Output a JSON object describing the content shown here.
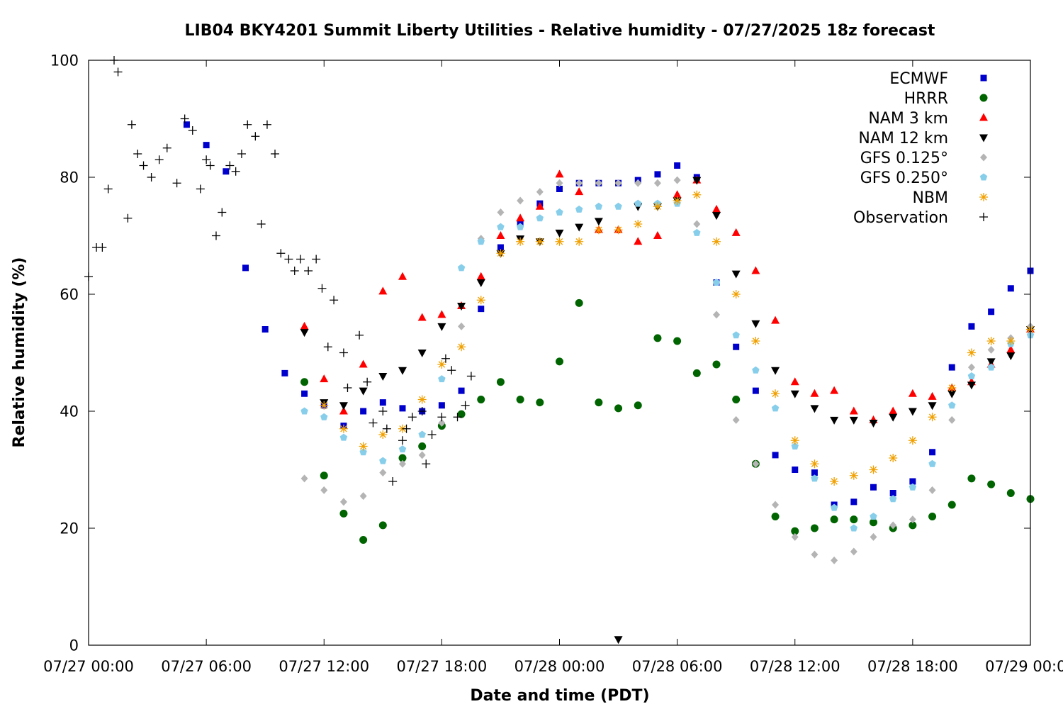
{
  "chart_data": {
    "type": "scatter",
    "title": "LIB04 BKY4201 Summit Liberty Utilities - Relative humidity - 07/27/2025 18z forecast",
    "xlabel": "Date and time (PDT)",
    "ylabel": "Relative humidity (%)",
    "x_unit": "hours since 07/27 00:00",
    "xlim": [
      0,
      48
    ],
    "ylim": [
      0,
      100
    ],
    "x_ticks": [
      {
        "value": 0,
        "label": "07/27 00:00"
      },
      {
        "value": 6,
        "label": "07/27 06:00"
      },
      {
        "value": 12,
        "label": "07/27 12:00"
      },
      {
        "value": 18,
        "label": "07/27 18:00"
      },
      {
        "value": 24,
        "label": "07/28 00:00"
      },
      {
        "value": 30,
        "label": "07/28 06:00"
      },
      {
        "value": 36,
        "label": "07/28 12:00"
      },
      {
        "value": 42,
        "label": "07/28 18:00"
      },
      {
        "value": 48,
        "label": "07/29 00:00"
      }
    ],
    "y_ticks": [
      {
        "value": 0,
        "label": "0"
      },
      {
        "value": 20,
        "label": "20"
      },
      {
        "value": 40,
        "label": "40"
      },
      {
        "value": 60,
        "label": "60"
      },
      {
        "value": 80,
        "label": "80"
      },
      {
        "value": 100,
        "label": "100"
      }
    ],
    "legend_position": "top-right",
    "series": [
      {
        "name": "ECMWF",
        "marker": "square",
        "color": "#0000cc",
        "x": [
          5,
          6,
          7,
          8,
          9,
          10,
          11,
          12,
          13,
          14,
          15,
          16,
          17,
          18,
          19,
          20,
          21,
          22,
          23,
          24,
          25,
          26,
          27,
          28,
          29,
          30,
          31,
          32,
          33,
          34,
          35,
          36,
          37,
          38,
          39,
          40,
          41,
          42,
          43,
          44,
          45,
          46,
          47,
          48
        ],
        "y": [
          89,
          85.5,
          81,
          64.5,
          54,
          46.5,
          43,
          41,
          37.5,
          40,
          41.5,
          40.5,
          40,
          41,
          43.5,
          57.5,
          68,
          72,
          75.5,
          78,
          79,
          79,
          79,
          79.5,
          80.5,
          82,
          80,
          62,
          51,
          43.5,
          32.5,
          30,
          29.5,
          24,
          24.5,
          27,
          26,
          28,
          33,
          47.5,
          54.5,
          57,
          61,
          64
        ]
      },
      {
        "name": "HRRR",
        "marker": "circle",
        "color": "#006400",
        "x": [
          11,
          12,
          13,
          14,
          15,
          16,
          17,
          18,
          19,
          20,
          21,
          22,
          23,
          24,
          25,
          26,
          27,
          28,
          29,
          30,
          31,
          32,
          33,
          34,
          35,
          36,
          37,
          38,
          39,
          40,
          41,
          42,
          43,
          44,
          45,
          46,
          47,
          48
        ],
        "y": [
          45,
          29,
          22.5,
          18,
          20.5,
          32,
          34,
          37.5,
          39.5,
          42,
          45,
          42,
          41.5,
          48.5,
          58.5,
          41.5,
          40.5,
          41,
          52.5,
          52,
          46.5,
          48,
          42,
          31,
          22,
          19.5,
          20,
          21.5,
          21.5,
          21,
          20,
          20.5,
          22,
          24,
          28.5,
          27.5,
          26,
          25
        ]
      },
      {
        "name": "NAM 3 km",
        "marker": "triangle-up",
        "color": "#ff0000",
        "x": [
          11,
          12,
          13,
          14,
          15,
          16,
          17,
          18,
          19,
          20,
          21,
          22,
          23,
          24,
          25,
          26,
          27,
          28,
          29,
          30,
          31,
          32,
          33,
          34,
          35,
          36,
          37,
          38,
          39,
          40,
          41,
          42,
          43,
          44,
          45,
          46,
          47,
          48
        ],
        "y": [
          54.5,
          45.5,
          40,
          48,
          60.5,
          63,
          56,
          56.5,
          58,
          63,
          70,
          73,
          75,
          80.5,
          77.5,
          71,
          71,
          69,
          70,
          77,
          79.5,
          74.5,
          70.5,
          64,
          55.5,
          45,
          43,
          43.5,
          40,
          38.5,
          40,
          43,
          42.5,
          44,
          45,
          48,
          50.5,
          54
        ]
      },
      {
        "name": "NAM 12 km",
        "marker": "triangle-down",
        "color": "#000000",
        "x": [
          11,
          12,
          13,
          14,
          15,
          16,
          17,
          18,
          19,
          20,
          21,
          22,
          23,
          24,
          25,
          26,
          27,
          28,
          29,
          30,
          31,
          32,
          33,
          34,
          35,
          36,
          37,
          38,
          39,
          40,
          41,
          42,
          43,
          44,
          45,
          46,
          47,
          48
        ],
        "y": [
          53.5,
          41.5,
          41,
          43.5,
          46,
          47,
          50,
          54.5,
          58,
          62,
          67,
          69.5,
          69,
          70.5,
          71.5,
          72.5,
          1,
          75,
          75,
          76,
          79.5,
          73.5,
          63.5,
          55,
          47,
          43,
          40.5,
          38.5,
          38.5,
          38,
          39,
          40,
          41,
          43,
          44.5,
          48.5,
          49.5,
          54
        ]
      },
      {
        "name": "GFS 0.125°",
        "marker": "diamond",
        "color": "#b4b4b4",
        "x": [
          11,
          12,
          13,
          14,
          15,
          16,
          17,
          18,
          19,
          20,
          21,
          22,
          23,
          24,
          25,
          26,
          27,
          28,
          29,
          30,
          31,
          32,
          33,
          34,
          35,
          36,
          37,
          38,
          39,
          40,
          41,
          42,
          43,
          44,
          45,
          46,
          47,
          48
        ],
        "y": [
          28.5,
          26.5,
          24.5,
          25.5,
          29.5,
          31,
          32.5,
          38,
          54.5,
          69.5,
          74,
          76,
          77.5,
          79,
          79,
          79,
          79,
          79,
          79,
          79.5,
          72,
          56.5,
          38.5,
          31,
          24,
          18.5,
          15.5,
          14.5,
          16,
          18.5,
          20.5,
          21.5,
          26.5,
          38.5,
          47.5,
          50.5,
          52.5,
          54.5
        ]
      },
      {
        "name": "GFS 0.250°",
        "marker": "pentagon",
        "color": "#87ceeb",
        "x": [
          11,
          12,
          13,
          14,
          15,
          16,
          17,
          18,
          19,
          20,
          21,
          22,
          23,
          24,
          25,
          26,
          27,
          28,
          29,
          30,
          31,
          32,
          33,
          34,
          35,
          36,
          37,
          38,
          39,
          40,
          41,
          42,
          43,
          44,
          45,
          46,
          47,
          48
        ],
        "y": [
          40,
          39,
          35.5,
          33,
          31.5,
          33.5,
          36,
          45.5,
          64.5,
          69,
          71.5,
          71.5,
          73,
          74,
          74.5,
          75,
          75,
          75.5,
          75.5,
          75.5,
          70.5,
          62,
          53,
          47,
          40.5,
          34,
          28.5,
          23.5,
          20,
          22,
          25,
          27,
          31,
          41,
          46,
          47.5,
          51.5,
          53
        ]
      },
      {
        "name": "NBM",
        "marker": "asterisk",
        "color": "#f0a000",
        "x": [
          12,
          13,
          14,
          15,
          16,
          17,
          18,
          19,
          20,
          21,
          22,
          23,
          24,
          25,
          26,
          27,
          28,
          29,
          30,
          31,
          32,
          33,
          34,
          35,
          36,
          37,
          38,
          39,
          40,
          41,
          42,
          43,
          44,
          45,
          46,
          47,
          48
        ],
        "y": [
          41,
          37,
          34,
          36,
          37,
          42,
          48,
          51,
          59,
          67,
          69,
          69,
          69,
          69,
          71,
          71,
          72,
          75,
          76,
          77,
          69,
          60,
          52,
          43,
          35,
          31,
          28,
          29,
          30,
          32,
          35,
          39,
          44,
          50,
          52,
          52,
          54
        ]
      },
      {
        "name": "Observation",
        "marker": "plus",
        "color": "#000000",
        "x": [
          0,
          0.4,
          0.7,
          1,
          1.3,
          1.5,
          2,
          2.2,
          2.5,
          2.8,
          3.2,
          3.6,
          4,
          4.5,
          4.9,
          5.3,
          5.7,
          6,
          6.2,
          6.5,
          6.8,
          7.2,
          7.5,
          7.8,
          8.1,
          8.5,
          8.8,
          9.1,
          9.5,
          9.8,
          10.2,
          10.5,
          10.8,
          11.2,
          11.6,
          11.9,
          12.2,
          12.5,
          13,
          13.2,
          13.8,
          14.2,
          14.5,
          15,
          15.2,
          15.5,
          16,
          16.2,
          16.5,
          17,
          17.2,
          17.5,
          18,
          18.2,
          18.5,
          18.8,
          19.2,
          19.5
        ],
        "y": [
          63,
          68,
          68,
          78,
          100,
          98,
          73,
          89,
          84,
          82,
          80,
          83,
          85,
          79,
          90,
          88,
          78,
          83,
          82,
          70,
          74,
          82,
          81,
          84,
          89,
          87,
          72,
          89,
          84,
          67,
          66,
          64,
          66,
          64,
          66,
          61,
          51,
          59,
          50,
          44,
          53,
          45,
          38,
          40,
          37,
          28,
          35,
          37,
          39,
          40,
          31,
          36,
          39,
          49,
          47,
          39,
          41,
          46
        ]
      }
    ]
  }
}
